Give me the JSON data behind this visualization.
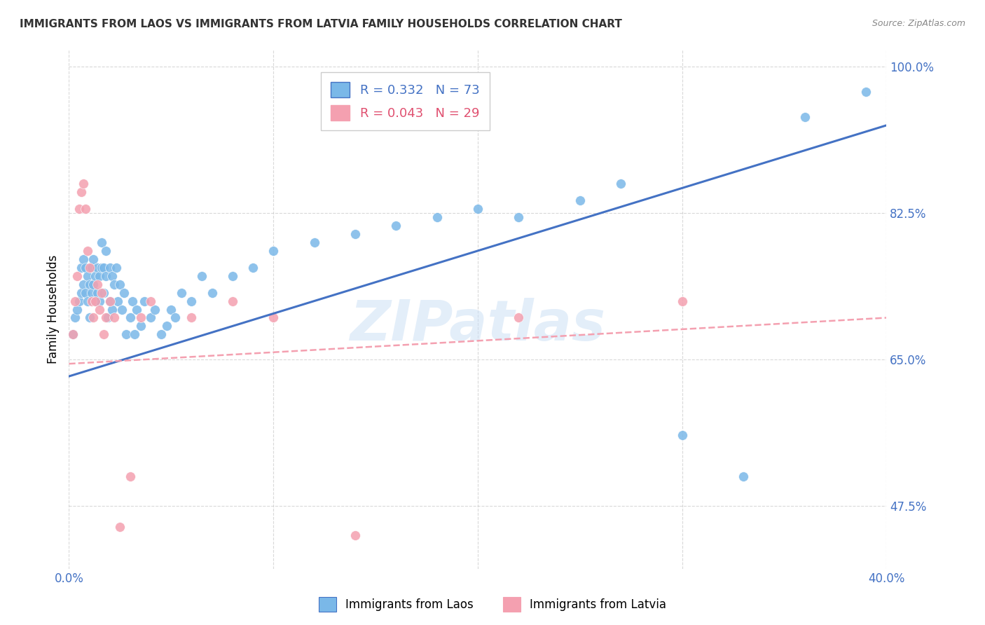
{
  "title": "IMMIGRANTS FROM LAOS VS IMMIGRANTS FROM LATVIA FAMILY HOUSEHOLDS CORRELATION CHART",
  "source": "Source: ZipAtlas.com",
  "ylabel_label": "Family Households",
  "xlim": [
    0.0,
    0.4
  ],
  "ylim": [
    0.4,
    1.02
  ],
  "xticks": [
    0.0,
    0.1,
    0.2,
    0.3,
    0.4
  ],
  "xtick_labels": [
    "0.0%",
    "",
    "",
    "",
    "40.0%"
  ],
  "ytick_positions": [
    0.475,
    0.65,
    0.825,
    1.0
  ],
  "ytick_labels": [
    "47.5%",
    "65.0%",
    "82.5%",
    "100.0%"
  ],
  "laos_color": "#7ab8e8",
  "latvia_color": "#f4a0b0",
  "laos_line_color": "#4472c4",
  "latvia_line_color": "#f4a0b0",
  "laos_R": 0.332,
  "laos_N": 73,
  "latvia_R": 0.043,
  "latvia_N": 29,
  "laos_scatter_x": [
    0.002,
    0.003,
    0.004,
    0.005,
    0.006,
    0.006,
    0.007,
    0.007,
    0.008,
    0.008,
    0.009,
    0.009,
    0.01,
    0.01,
    0.011,
    0.011,
    0.012,
    0.012,
    0.013,
    0.013,
    0.014,
    0.014,
    0.015,
    0.015,
    0.016,
    0.016,
    0.017,
    0.017,
    0.018,
    0.018,
    0.019,
    0.02,
    0.02,
    0.021,
    0.021,
    0.022,
    0.023,
    0.024,
    0.025,
    0.026,
    0.027,
    0.028,
    0.03,
    0.031,
    0.032,
    0.033,
    0.035,
    0.037,
    0.04,
    0.042,
    0.045,
    0.048,
    0.05,
    0.052,
    0.055,
    0.06,
    0.065,
    0.07,
    0.08,
    0.09,
    0.1,
    0.12,
    0.14,
    0.16,
    0.18,
    0.2,
    0.22,
    0.25,
    0.27,
    0.3,
    0.33,
    0.36,
    0.39
  ],
  "laos_scatter_y": [
    0.68,
    0.7,
    0.71,
    0.72,
    0.73,
    0.76,
    0.74,
    0.77,
    0.73,
    0.76,
    0.72,
    0.75,
    0.7,
    0.74,
    0.73,
    0.76,
    0.74,
    0.77,
    0.72,
    0.75,
    0.73,
    0.76,
    0.72,
    0.75,
    0.76,
    0.79,
    0.73,
    0.76,
    0.75,
    0.78,
    0.7,
    0.72,
    0.76,
    0.71,
    0.75,
    0.74,
    0.76,
    0.72,
    0.74,
    0.71,
    0.73,
    0.68,
    0.7,
    0.72,
    0.68,
    0.71,
    0.69,
    0.72,
    0.7,
    0.71,
    0.68,
    0.69,
    0.71,
    0.7,
    0.73,
    0.72,
    0.75,
    0.73,
    0.75,
    0.76,
    0.78,
    0.79,
    0.8,
    0.81,
    0.82,
    0.83,
    0.82,
    0.84,
    0.86,
    0.56,
    0.51,
    0.94,
    0.97
  ],
  "latvia_scatter_x": [
    0.002,
    0.003,
    0.004,
    0.005,
    0.006,
    0.007,
    0.008,
    0.009,
    0.01,
    0.011,
    0.012,
    0.013,
    0.014,
    0.015,
    0.016,
    0.017,
    0.018,
    0.02,
    0.022,
    0.025,
    0.03,
    0.035,
    0.04,
    0.06,
    0.08,
    0.1,
    0.14,
    0.22,
    0.3
  ],
  "latvia_scatter_y": [
    0.68,
    0.72,
    0.75,
    0.83,
    0.85,
    0.86,
    0.83,
    0.78,
    0.76,
    0.72,
    0.7,
    0.72,
    0.74,
    0.71,
    0.73,
    0.68,
    0.7,
    0.72,
    0.7,
    0.45,
    0.51,
    0.7,
    0.72,
    0.7,
    0.72,
    0.7,
    0.44,
    0.7,
    0.72
  ],
  "laos_line_x": [
    0.0,
    0.4
  ],
  "laos_line_y": [
    0.63,
    0.93
  ],
  "latvia_line_x": [
    0.0,
    0.4
  ],
  "latvia_line_y": [
    0.645,
    0.7
  ],
  "watermark": "ZIPatlas",
  "background_color": "#ffffff",
  "grid_color": "#d0d0d0",
  "title_color": "#333333",
  "tick_label_color": "#4472c4"
}
